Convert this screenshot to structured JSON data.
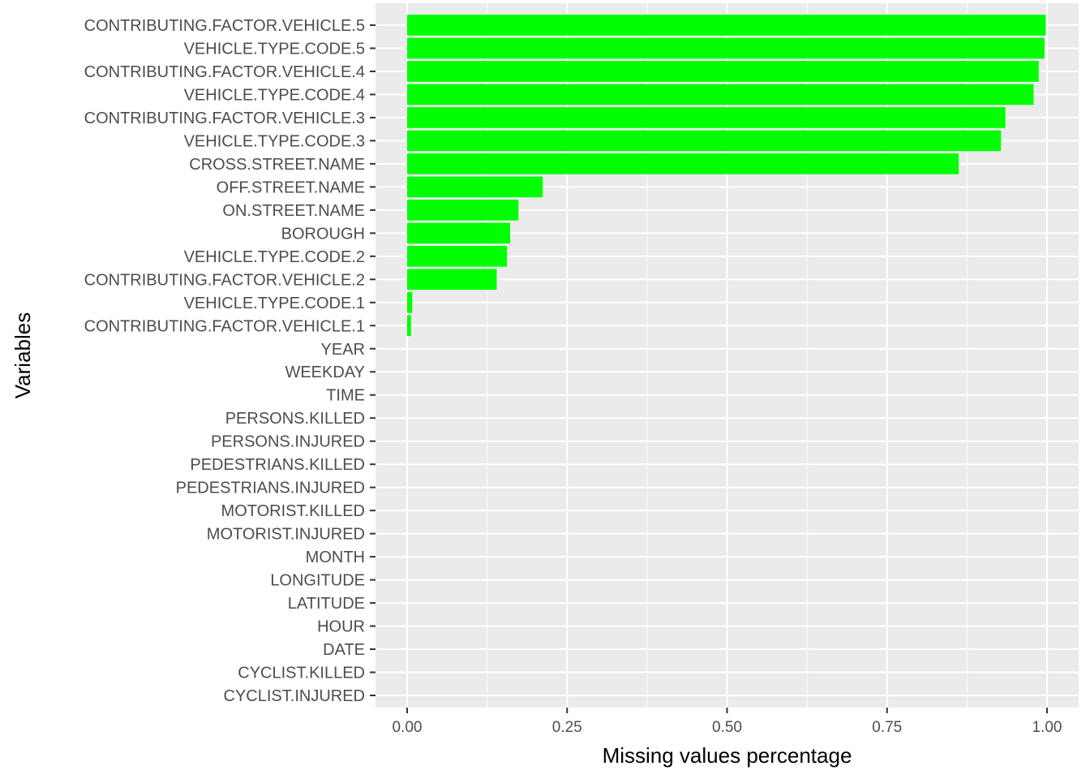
{
  "chart_data": {
    "type": "bar",
    "orientation": "horizontal",
    "title": "",
    "xlabel": "Missing values percentage",
    "ylabel": "Variables",
    "xlim": [
      -0.05,
      1.05
    ],
    "xticks": [
      0.0,
      0.25,
      0.5,
      0.75,
      1.0
    ],
    "xtick_labels": [
      "0.00",
      "0.25",
      "0.50",
      "0.75",
      "1.00"
    ],
    "grid": true,
    "legend": "none",
    "colors": {
      "bar": "#00ff00",
      "panel_background": "#ebebeb",
      "grid": "#ffffff",
      "tick_text": "#4d4d4d"
    },
    "categories": [
      "CONTRIBUTING.FACTOR.VEHICLE.5",
      "VEHICLE.TYPE.CODE.5",
      "CONTRIBUTING.FACTOR.VEHICLE.4",
      "VEHICLE.TYPE.CODE.4",
      "CONTRIBUTING.FACTOR.VEHICLE.3",
      "VEHICLE.TYPE.CODE.3",
      "CROSS.STREET.NAME",
      "OFF.STREET.NAME",
      "ON.STREET.NAME",
      "BOROUGH",
      "VEHICLE.TYPE.CODE.2",
      "CONTRIBUTING.FACTOR.VEHICLE.2",
      "VEHICLE.TYPE.CODE.1",
      "CONTRIBUTING.FACTOR.VEHICLE.1",
      "YEAR",
      "WEEKDAY",
      "TIME",
      "PERSONS.KILLED",
      "PERSONS.INJURED",
      "PEDESTRIANS.KILLED",
      "PEDESTRIANS.INJURED",
      "MOTORIST.KILLED",
      "MOTORIST.INJURED",
      "MONTH",
      "LONGITUDE",
      "LATITUDE",
      "HOUR",
      "DATE",
      "CYCLIST.KILLED",
      "CYCLIST.INJURED"
    ],
    "values": [
      0.998,
      0.996,
      0.987,
      0.979,
      0.935,
      0.928,
      0.862,
      0.212,
      0.174,
      0.161,
      0.156,
      0.14,
      0.008,
      0.006,
      0,
      0,
      0,
      0,
      0,
      0,
      0,
      0,
      0,
      0,
      0,
      0,
      0,
      0,
      0,
      0
    ]
  }
}
